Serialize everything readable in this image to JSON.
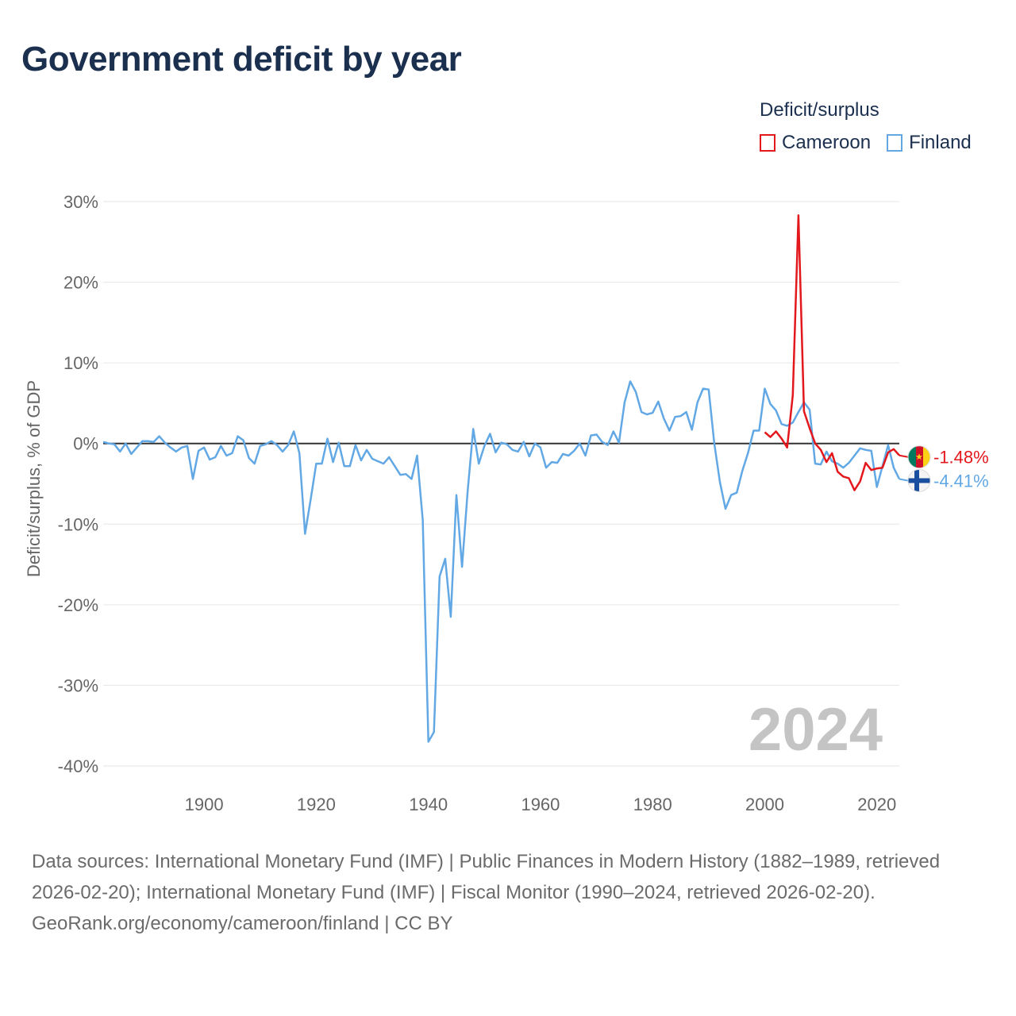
{
  "title": "Government deficit by year",
  "legend": {
    "title": "Deficit/surplus",
    "items": [
      {
        "label": "Cameroon",
        "color": "#e3181d"
      },
      {
        "label": "Finland",
        "color": "#62a8e5"
      }
    ]
  },
  "year_label": "2024",
  "footer": {
    "sources": "Data sources: International Monetary Fund (IMF) | Public Finances in Modern History (1882–1989, retrieved 2026-02-20); International Monetary Fund (IMF) | Fiscal Monitor (1990–2024, retrieved 2026-02-20).",
    "credit": "GeoRank.org/economy/cameroon/finland | CC BY"
  },
  "chart_data": {
    "type": "line",
    "title": "Government deficit by year",
    "xlabel": "",
    "ylabel": "Deficit/surplus, % of GDP",
    "xlim": [
      1882,
      2024
    ],
    "ylim": [
      -40,
      30
    ],
    "x_ticks": [
      1900,
      1920,
      1940,
      1960,
      1980,
      2000,
      2020
    ],
    "y_ticks": [
      30,
      20,
      10,
      0,
      -10,
      -20,
      -30,
      -40
    ],
    "y_tick_labels": [
      "30%",
      "20%",
      "10%",
      "0%",
      "-10%",
      "-20%",
      "-30%",
      "-40%"
    ],
    "series": [
      {
        "name": "Cameroon",
        "color": "#e3181d",
        "end_label": "-1.48%",
        "x": [
          2000,
          2001,
          2002,
          2003,
          2004,
          2005,
          2006,
          2007,
          2008,
          2009,
          2010,
          2011,
          2012,
          2013,
          2014,
          2015,
          2016,
          2017,
          2018,
          2019,
          2020,
          2021,
          2022,
          2023,
          2024
        ],
        "y": [
          1.4,
          0.8,
          1.5,
          0.6,
          -0.5,
          6.0,
          28.3,
          4.0,
          1.9,
          0.0,
          -0.8,
          -2.3,
          -1.2,
          -3.5,
          -4.1,
          -4.3,
          -5.8,
          -4.7,
          -2.4,
          -3.3,
          -3.1,
          -3.0,
          -1.1,
          -0.7,
          -1.48
        ]
      },
      {
        "name": "Finland",
        "color": "#62a8e5",
        "end_label": "-4.41%",
        "x": [
          1882,
          1883,
          1884,
          1885,
          1886,
          1887,
          1888,
          1889,
          1890,
          1891,
          1892,
          1893,
          1894,
          1895,
          1896,
          1897,
          1898,
          1899,
          1900,
          1901,
          1902,
          1903,
          1904,
          1905,
          1906,
          1907,
          1908,
          1909,
          1910,
          1911,
          1912,
          1913,
          1914,
          1915,
          1916,
          1917,
          1918,
          1919,
          1920,
          1921,
          1922,
          1923,
          1924,
          1925,
          1926,
          1927,
          1928,
          1929,
          1930,
          1931,
          1932,
          1933,
          1934,
          1935,
          1936,
          1937,
          1938,
          1939,
          1940,
          1941,
          1942,
          1943,
          1944,
          1945,
          1946,
          1947,
          1948,
          1949,
          1950,
          1951,
          1952,
          1953,
          1954,
          1955,
          1956,
          1957,
          1958,
          1959,
          1960,
          1961,
          1962,
          1963,
          1964,
          1965,
          1966,
          1967,
          1968,
          1969,
          1970,
          1971,
          1972,
          1973,
          1974,
          1975,
          1976,
          1977,
          1978,
          1979,
          1980,
          1981,
          1982,
          1983,
          1984,
          1985,
          1986,
          1987,
          1988,
          1989,
          1990,
          1991,
          1992,
          1993,
          1994,
          1995,
          1996,
          1997,
          1998,
          1999,
          2000,
          2001,
          2002,
          2003,
          2004,
          2005,
          2006,
          2007,
          2008,
          2009,
          2010,
          2011,
          2012,
          2013,
          2014,
          2015,
          2016,
          2017,
          2018,
          2019,
          2020,
          2021,
          2022,
          2023,
          2024
        ],
        "y": [
          0.2,
          0.0,
          -0.1,
          -1.0,
          0.0,
          -1.3,
          -0.5,
          0.3,
          0.3,
          0.2,
          0.9,
          0.1,
          -0.5,
          -1.0,
          -0.5,
          -0.3,
          -4.4,
          -0.9,
          -0.5,
          -2.0,
          -1.7,
          -0.3,
          -1.5,
          -1.2,
          0.9,
          0.4,
          -1.8,
          -2.5,
          -0.3,
          -0.1,
          0.3,
          -0.2,
          -1.0,
          -0.2,
          1.5,
          -1.2,
          -11.2,
          -7.0,
          -2.5,
          -2.5,
          0.6,
          -2.3,
          0.1,
          -2.8,
          -2.8,
          -0.2,
          -2.1,
          -0.8,
          -1.9,
          -2.2,
          -2.5,
          -1.7,
          -2.8,
          -3.9,
          -3.8,
          -4.4,
          -1.5,
          -9.5,
          -37.0,
          -35.8,
          -16.5,
          -14.3,
          -21.5,
          -6.4,
          -15.3,
          -6.0,
          1.8,
          -2.5,
          -0.3,
          1.2,
          -1.1,
          0.1,
          -0.1,
          -0.8,
          -1.0,
          0.2,
          -1.6,
          0.0,
          -0.5,
          -3.0,
          -2.3,
          -2.4,
          -1.3,
          -1.5,
          -0.9,
          0.0,
          -1.5,
          1.0,
          1.1,
          0.2,
          -0.2,
          1.5,
          0.1,
          5.1,
          7.7,
          6.4,
          3.9,
          3.6,
          3.8,
          5.2,
          3.1,
          1.6,
          3.3,
          3.4,
          3.9,
          1.7,
          5.1,
          6.8,
          6.7,
          0.0,
          -4.8,
          -8.1,
          -6.4,
          -6.1,
          -3.4,
          -1.2,
          1.6,
          1.6,
          6.8,
          4.9,
          4.1,
          2.4,
          2.2,
          2.6,
          3.9,
          5.1,
          4.2,
          -2.5,
          -2.6,
          -1.0,
          -2.2,
          -2.5,
          -3.0,
          -2.4,
          -1.5,
          -0.6,
          -0.8,
          -0.9,
          -5.4,
          -2.8,
          -0.2,
          -3.0,
          -4.41
        ]
      }
    ]
  }
}
